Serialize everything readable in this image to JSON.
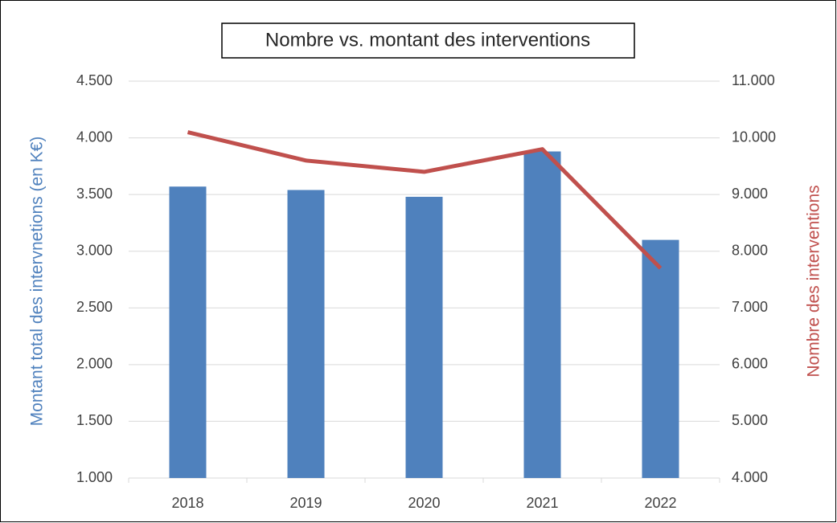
{
  "chart_data": {
    "type": "bar",
    "title": "Nombre vs. montant des interventions",
    "categories": [
      "2018",
      "2019",
      "2020",
      "2021",
      "2022"
    ],
    "series": [
      {
        "name": "Montant total des intervnetions (en K€)",
        "type": "bar",
        "color": "#4f81bd",
        "values": [
          3570,
          3540,
          3480,
          3880,
          3100
        ]
      },
      {
        "name": "Nombre des interventions",
        "type": "line",
        "axis": "y2",
        "color": "#c0504d",
        "values": [
          10100,
          9600,
          9400,
          9800,
          7700
        ]
      }
    ],
    "ylabel": "Montant total des intervnetions (en K€)",
    "y2label": "Nombre des interventions",
    "ylim": [
      1000,
      4500
    ],
    "yticks": [
      {
        "value": 1000,
        "label": "1.000"
      },
      {
        "value": 1500,
        "label": "1.500"
      },
      {
        "value": 2000,
        "label": "2.000"
      },
      {
        "value": 2500,
        "label": "2.500"
      },
      {
        "value": 3000,
        "label": "3.000"
      },
      {
        "value": 3500,
        "label": "3.500"
      },
      {
        "value": 4000,
        "label": "4.000"
      },
      {
        "value": 4500,
        "label": "4.500"
      }
    ],
    "y2lim": [
      4000,
      11000
    ],
    "y2ticks": [
      {
        "value": 4000,
        "label": "4.000"
      },
      {
        "value": 5000,
        "label": "5.000"
      },
      {
        "value": 6000,
        "label": "6.000"
      },
      {
        "value": 7000,
        "label": "7.000"
      },
      {
        "value": 8000,
        "label": "8.000"
      },
      {
        "value": 9000,
        "label": "9.000"
      },
      {
        "value": 10000,
        "label": "10.000"
      },
      {
        "value": 11000,
        "label": "11.000"
      }
    ],
    "grid": true
  }
}
